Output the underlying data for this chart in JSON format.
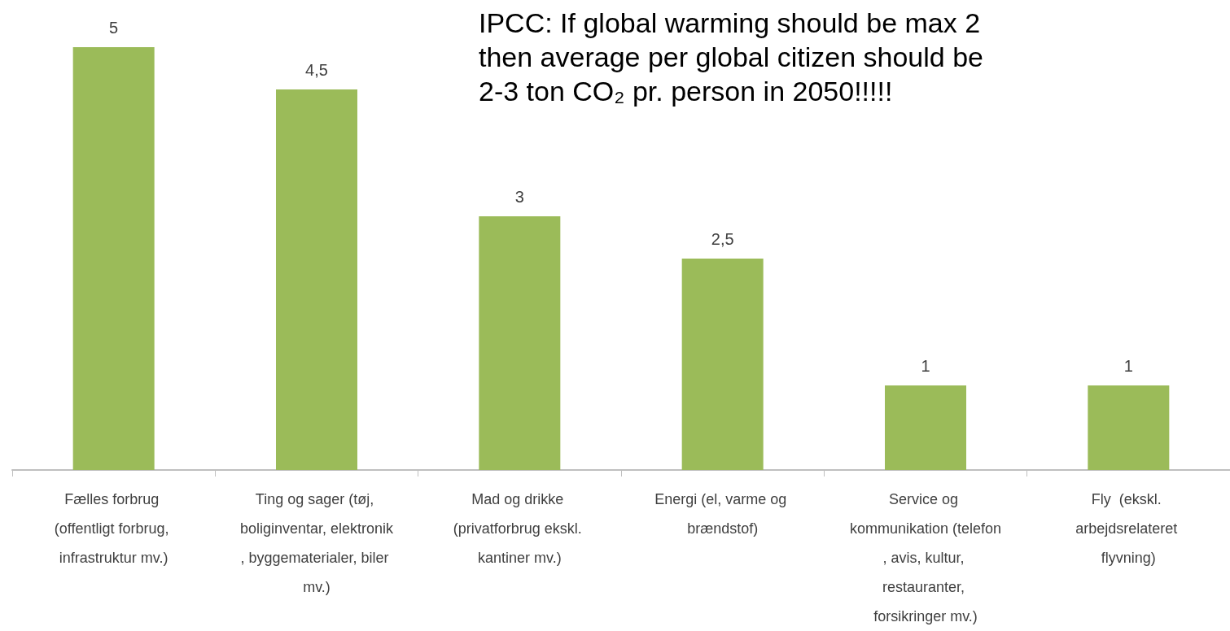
{
  "chart_data": {
    "type": "bar",
    "title": "IPCC: If global warming should be max 2\nthen average per global citizen should be\n2-3 ton CO₂ pr. person in 2050!!!!!",
    "categories": [
      "Fælles forbrug (offentligt forbrug, infrastruktur mv.)",
      "Ting og sager (tøj, boliginventar, elektronik, byggematerialer, biler mv.)",
      "Mad og drikke (privatforbrug ekskl. kantiner mv.)",
      "Energi (el, varme og brændstof)",
      "Service og kommunikation (telefon, avis, kultur, restauranter, forsikringer mv.)",
      "Fly  (ekskl. arbejdsrelateret flyvning)"
    ],
    "values": [
      5,
      4.5,
      3,
      2.5,
      1,
      1
    ],
    "value_labels": [
      "5",
      "4,5",
      "3",
      "2,5",
      "1",
      "1"
    ],
    "color": "#9bbb59"
  }
}
